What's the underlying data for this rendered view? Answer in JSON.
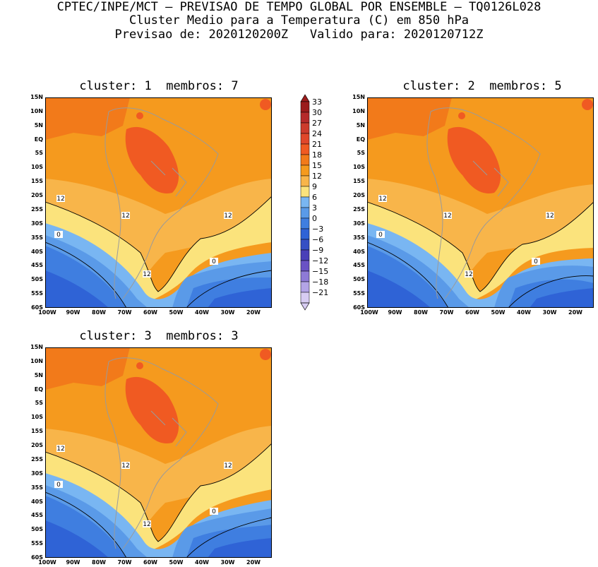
{
  "header": {
    "line1": "CPTEC/INPE/MCT — PREVISAO DE TEMPO GLOBAL POR ENSEMBLE — TQ0126L028",
    "line2": "Cluster Medio para a Temperatura (C) em 850 hPa",
    "line3": "Previsao de: 2020120200Z   Valido para: 2020120712Z"
  },
  "panels": [
    {
      "title": "cluster: 1  membros: 7"
    },
    {
      "title": "cluster: 2  membros: 5"
    },
    {
      "title": "cluster: 3  membros: 3"
    }
  ],
  "lat_labels": [
    "15N",
    "10N",
    "5N",
    "EQ",
    "5S",
    "10S",
    "15S",
    "20S",
    "25S",
    "30S",
    "35S",
    "40S",
    "45S",
    "50S",
    "55S",
    "60S"
  ],
  "lon_labels": [
    "100W",
    "90W",
    "80W",
    "70W",
    "60W",
    "50W",
    "40W",
    "30W",
    "20W"
  ],
  "contour_labels": {
    "p1": [
      "12",
      "12",
      "12",
      "0",
      "0",
      "12"
    ],
    "p2": [
      "12",
      "12",
      "12",
      "0",
      "0",
      "12"
    ],
    "p3": [
      "12",
      "12",
      "12",
      "0",
      "0",
      "12"
    ]
  },
  "colorbar": {
    "levels": [
      "33",
      "30",
      "27",
      "24",
      "21",
      "18",
      "15",
      "12",
      "9",
      "6",
      "3",
      "0",
      "−3",
      "−6",
      "−9",
      "−12",
      "−15",
      "−18",
      "−21"
    ],
    "colors": [
      "#9b1c1c",
      "#b52a2a",
      "#cc3b2c",
      "#e0472a",
      "#f05a22",
      "#f27a1a",
      "#f59a1e",
      "#f8b54a",
      "#fbe37c",
      "#79b6f2",
      "#5a9ae8",
      "#3f7ee0",
      "#2f63d6",
      "#3650c4",
      "#4a40b8",
      "#6a52c4",
      "#8e7ad6",
      "#b3a4e6",
      "#d7ccf2"
    ]
  }
}
